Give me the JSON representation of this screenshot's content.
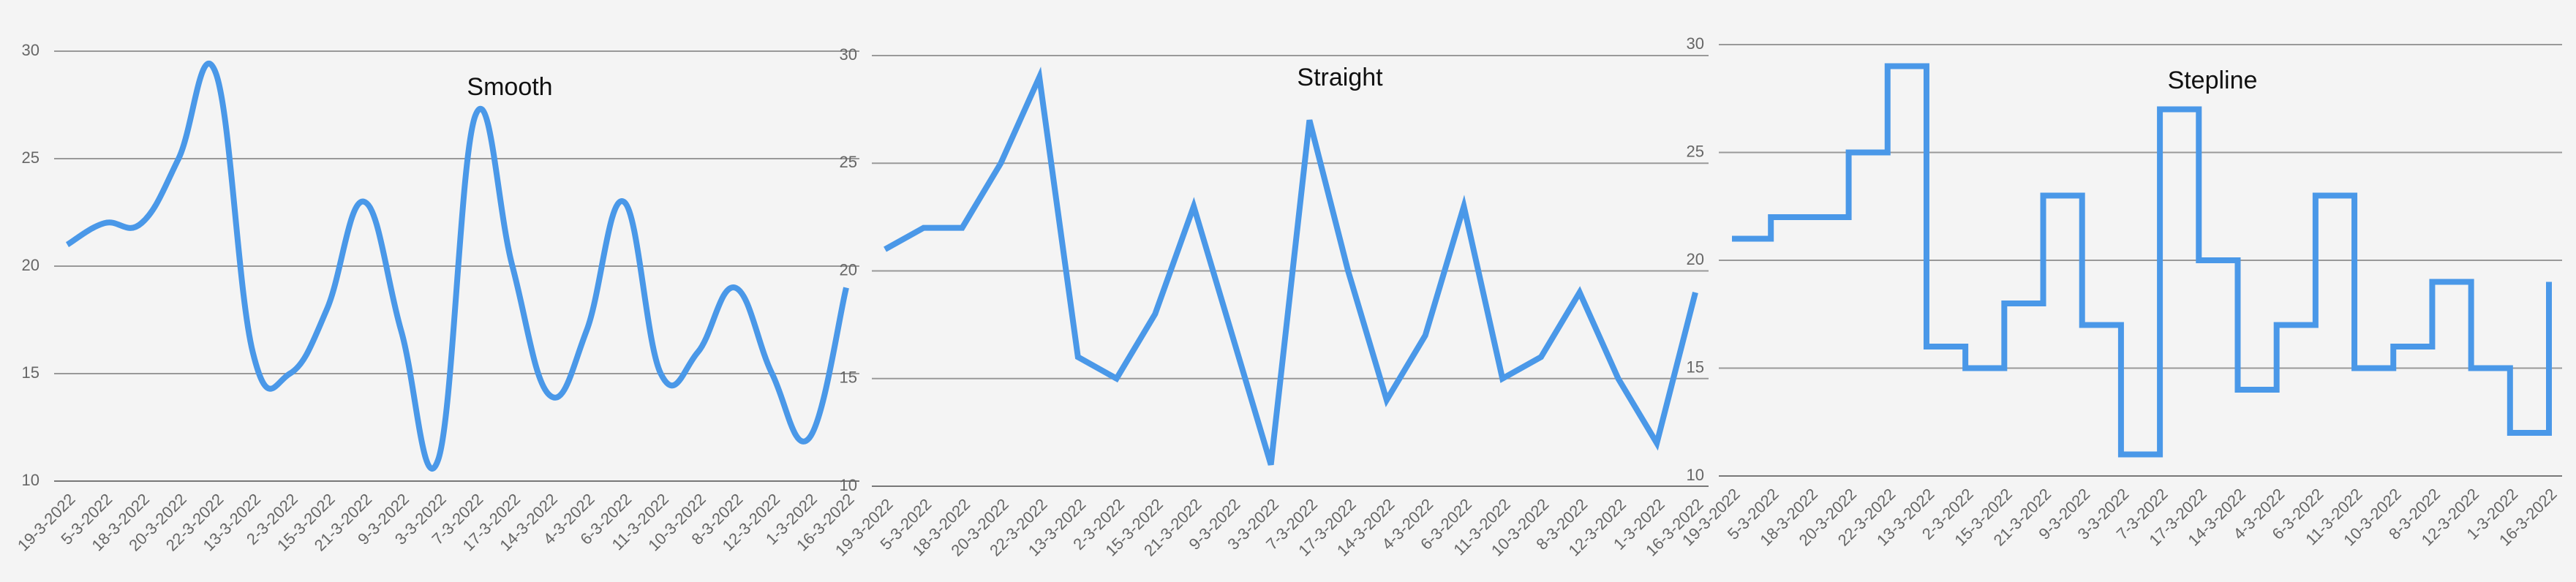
{
  "chart_data": [
    {
      "type": "line",
      "curve": "smooth",
      "title": "Smooth",
      "categories": [
        "19-3-2022",
        "5-3-2022",
        "18-3-2022",
        "20-3-2022",
        "22-3-2022",
        "13-3-2022",
        "2-3-2022",
        "15-3-2022",
        "21-3-2022",
        "9-3-2022",
        "3-3-2022",
        "7-3-2022",
        "17-3-2022",
        "14-3-2022",
        "4-3-2022",
        "6-3-2022",
        "11-3-2022",
        "10-3-2022",
        "8-3-2022",
        "12-3-2022",
        "1-3-2022",
        "16-3-2022"
      ],
      "series": [
        {
          "color": "#4a98e8",
          "values": [
            21,
            22,
            22,
            25,
            29,
            16,
            15,
            18,
            23,
            17,
            11,
            27,
            20,
            14,
            17,
            23,
            15,
            16,
            19,
            15,
            12,
            19
          ]
        }
      ],
      "ylim": [
        10,
        30
      ],
      "yticks": [
        10,
        15,
        20,
        25,
        30
      ],
      "grid": true
    },
    {
      "type": "line",
      "curve": "straight",
      "title": "Straight",
      "categories": [
        "19-3-2022",
        "5-3-2022",
        "18-3-2022",
        "20-3-2022",
        "22-3-2022",
        "13-3-2022",
        "2-3-2022",
        "15-3-2022",
        "21-3-2022",
        "9-3-2022",
        "3-3-2022",
        "7-3-2022",
        "17-3-2022",
        "14-3-2022",
        "4-3-2022",
        "6-3-2022",
        "11-3-2022",
        "10-3-2022",
        "8-3-2022",
        "12-3-2022",
        "1-3-2022",
        "16-3-2022"
      ],
      "series": [
        {
          "color": "#4a98e8",
          "values": [
            21,
            22,
            22,
            25,
            29,
            16,
            15,
            18,
            23,
            17,
            11,
            27,
            20,
            14,
            17,
            23,
            15,
            16,
            19,
            15,
            12,
            19
          ]
        }
      ],
      "ylim": [
        10,
        30
      ],
      "yticks": [
        10,
        15,
        20,
        25,
        30
      ],
      "grid": true
    },
    {
      "type": "line",
      "curve": "step",
      "title": "Stepline",
      "categories": [
        "19-3-2022",
        "5-3-2022",
        "18-3-2022",
        "20-3-2022",
        "22-3-2022",
        "13-3-2022",
        "2-3-2022",
        "15-3-2022",
        "21-3-2022",
        "9-3-2022",
        "3-3-2022",
        "7-3-2022",
        "17-3-2022",
        "14-3-2022",
        "4-3-2022",
        "6-3-2022",
        "11-3-2022",
        "10-3-2022",
        "8-3-2022",
        "12-3-2022",
        "1-3-2022",
        "16-3-2022"
      ],
      "series": [
        {
          "color": "#4a98e8",
          "values": [
            21,
            22,
            22,
            25,
            29,
            16,
            15,
            18,
            23,
            17,
            11,
            27,
            20,
            14,
            17,
            23,
            15,
            16,
            19,
            15,
            12,
            19
          ]
        }
      ],
      "ylim": [
        10,
        30
      ],
      "yticks": [
        10,
        15,
        20,
        25,
        30
      ],
      "grid": true
    }
  ]
}
